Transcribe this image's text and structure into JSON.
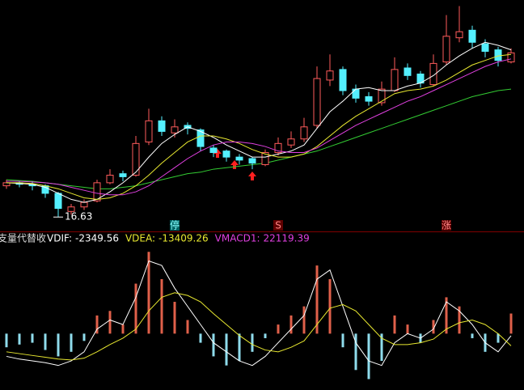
{
  "chart_data": [
    {
      "type": "candlestick",
      "open": [
        18.7,
        18.9,
        18.8,
        18.7,
        18.2,
        17.0,
        17.3,
        17.7,
        18.9,
        19.5,
        19.4,
        21.6,
        23.0,
        22.2,
        22.7,
        22.4,
        21.2,
        21.0,
        20.6,
        20.5,
        20.1,
        20.9,
        21.4,
        21.8,
        22.7,
        25.7,
        26.4,
        25.1,
        24.6,
        24.2,
        25.0,
        26.5,
        26.1,
        25.4,
        26.9,
        28.5,
        29.0,
        28.1,
        27.7,
        26.9
      ],
      "high": [
        19.1,
        19.0,
        19.0,
        18.8,
        18.3,
        17.5,
        17.8,
        19.1,
        19.8,
        19.7,
        22.0,
        23.8,
        23.3,
        23.1,
        22.9,
        22.5,
        21.4,
        21.1,
        20.8,
        20.6,
        21.1,
        21.9,
        22.3,
        23.2,
        26.6,
        27.4,
        26.6,
        25.4,
        24.9,
        25.6,
        27.2,
        26.8,
        26.3,
        27.4,
        30.0,
        30.6,
        29.3,
        28.4,
        27.9,
        27.8
      ],
      "low": [
        18.5,
        18.6,
        18.4,
        17.9,
        16.63,
        16.8,
        17.1,
        17.6,
        18.8,
        19.0,
        19.3,
        21.4,
        22.0,
        21.9,
        22.1,
        21.0,
        20.6,
        20.3,
        20.1,
        19.8,
        20.0,
        20.7,
        21.2,
        21.6,
        22.5,
        25.3,
        24.7,
        24.2,
        24.0,
        24.0,
        24.9,
        25.7,
        25.2,
        25.3,
        26.7,
        28.2,
        27.8,
        27.2,
        26.6,
        26.8
      ],
      "close": [
        18.9,
        18.8,
        18.7,
        18.2,
        17.2,
        17.3,
        17.6,
        18.9,
        19.4,
        19.3,
        21.5,
        23.0,
        22.3,
        22.6,
        22.5,
        21.3,
        20.9,
        20.6,
        20.4,
        20.2,
        20.9,
        21.5,
        21.8,
        22.6,
        25.8,
        26.3,
        25.0,
        24.5,
        24.3,
        25.1,
        26.4,
        26.0,
        25.5,
        26.8,
        28.6,
        28.9,
        28.2,
        27.6,
        27.0,
        27.5
      ],
      "up_color": "#ff5b5b",
      "down_color": "#54f0ff",
      "series": [
        {
          "color": "#ffffff",
          "values": [
            18.9,
            18.85,
            18.8,
            18.6,
            18.2,
            17.8,
            17.6,
            17.8,
            18.3,
            18.9,
            19.6,
            20.6,
            21.5,
            22.1,
            22.6,
            22.3,
            21.9,
            21.4,
            21.0,
            20.6,
            20.6,
            20.8,
            21.0,
            21.4,
            22.5,
            23.6,
            24.3,
            25.1,
            25.2,
            25.0,
            25.0,
            25.3,
            25.5,
            26.0,
            26.7,
            27.3,
            27.8,
            28.2,
            28.0,
            27.7
          ]
        },
        {
          "color": "#e8e830",
          "values": [
            18.9,
            18.9,
            18.85,
            18.7,
            18.5,
            18.2,
            17.9,
            17.8,
            17.9,
            18.2,
            18.7,
            19.4,
            20.2,
            20.9,
            21.6,
            22.0,
            22.0,
            21.8,
            21.5,
            21.1,
            20.8,
            20.6,
            20.6,
            20.8,
            21.3,
            22.0,
            22.7,
            23.3,
            23.8,
            24.3,
            24.8,
            25.0,
            25.1,
            25.3,
            25.7,
            26.2,
            26.7,
            27.0,
            27.3,
            27.4
          ]
        },
        {
          "color": "#e040e0",
          "values": [
            19.0,
            19.0,
            18.95,
            18.9,
            18.8,
            18.6,
            18.4,
            18.2,
            18.1,
            18.1,
            18.3,
            18.7,
            19.3,
            19.9,
            20.5,
            21.0,
            21.4,
            21.6,
            21.6,
            21.5,
            21.3,
            21.0,
            20.9,
            20.9,
            21.2,
            21.7,
            22.2,
            22.7,
            23.1,
            23.5,
            23.9,
            24.3,
            24.6,
            25.0,
            25.4,
            25.8,
            26.2,
            26.6,
            26.9,
            27.1
          ]
        },
        {
          "color": "#33cc33",
          "values": [
            19.1,
            19.05,
            19.0,
            18.9,
            18.8,
            18.7,
            18.6,
            18.5,
            18.5,
            18.6,
            18.7,
            18.9,
            19.1,
            19.3,
            19.5,
            19.6,
            19.8,
            19.9,
            20.0,
            20.1,
            20.2,
            20.4,
            20.6,
            20.8,
            21.0,
            21.3,
            21.6,
            21.9,
            22.2,
            22.5,
            22.8,
            23.1,
            23.4,
            23.7,
            24.0,
            24.3,
            24.6,
            24.8,
            25.0,
            25.1
          ]
        }
      ],
      "markers": [
        "停",
        "S",
        "涨"
      ],
      "ylim": [
        16,
        31
      ]
    },
    {
      "type": "macd",
      "title": "支量代替收",
      "legend": [
        {
          "label": "VDIF:",
          "value": -2349.56,
          "color": "#ffffff"
        },
        {
          "label": "VDEA:",
          "value": -13409.26,
          "color": "#e8e830"
        },
        {
          "label": "VMACD1:",
          "value": 22119.39,
          "color": "#e040e0"
        }
      ],
      "values": [
        -15000,
        -12000,
        -10000,
        -18000,
        -25000,
        -20000,
        -8000,
        20000,
        25000,
        10000,
        55000,
        90000,
        60000,
        35000,
        15000,
        -10000,
        -25000,
        -35000,
        -30000,
        -20000,
        -5000,
        10000,
        20000,
        30000,
        75000,
        60000,
        -15000,
        -40000,
        -50000,
        -30000,
        20000,
        10000,
        -10000,
        15000,
        40000,
        30000,
        -5000,
        -20000,
        -10000,
        22119.39
      ],
      "pos_color": "#e0604a",
      "neg_color": "#8fdcec",
      "series": [
        {
          "color": "#ffffff",
          "values": [
            -25000,
            -28000,
            -30000,
            -32000,
            -35000,
            -30000,
            -20000,
            5000,
            15000,
            10000,
            40000,
            80000,
            75000,
            50000,
            30000,
            10000,
            -10000,
            -20000,
            -30000,
            -35000,
            -25000,
            -10000,
            5000,
            20000,
            60000,
            70000,
            30000,
            -10000,
            -30000,
            -35000,
            -10000,
            0,
            -5000,
            5000,
            35000,
            25000,
            10000,
            -10000,
            -20000,
            -2349.56
          ]
        },
        {
          "color": "#e8e830",
          "values": [
            -20000,
            -22000,
            -24000,
            -26000,
            -28000,
            -29000,
            -27000,
            -20000,
            -12000,
            -5000,
            5000,
            25000,
            40000,
            45000,
            42000,
            35000,
            22000,
            10000,
            -2000,
            -12000,
            -18000,
            -20000,
            -15000,
            -8000,
            10000,
            28000,
            32000,
            25000,
            10000,
            -5000,
            -12000,
            -12000,
            -10000,
            -6000,
            5000,
            12000,
            15000,
            10000,
            0,
            -13409.26
          ]
        }
      ],
      "ylim": [
        -62000,
        100000
      ]
    }
  ]
}
